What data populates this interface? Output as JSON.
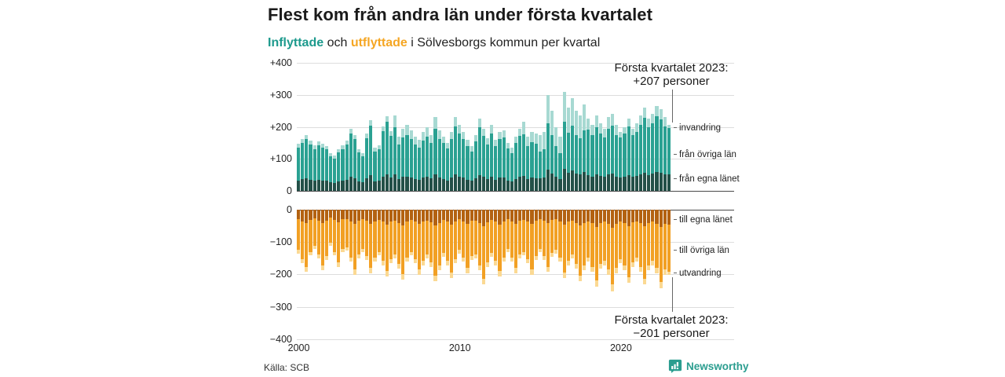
{
  "header": {
    "title": "Flest kom från andra län under första kvartalet",
    "subtitle": {
      "inflyttade": "Inflyttade",
      "och": " och ",
      "utflyttade": "utflyttade",
      "rest": " i Sölvesborgs kommun per kvartal"
    }
  },
  "colors": {
    "inflyttade": "#1d9a8d",
    "utflyttade": "#f5a623",
    "grid": "#dddddd",
    "axis": "#4a4a4a",
    "annotation_line": "#666666"
  },
  "chart_data": {
    "type": "bar",
    "stacked": true,
    "x_unit": "quarter",
    "x_range": "2000Q1–2023Q1",
    "x_ticks": [
      2000,
      2010,
      2020
    ],
    "top": {
      "label": "Inflyttade",
      "ylim": [
        0,
        400
      ],
      "yticks": [
        "+400",
        "+300",
        "+200",
        "+100",
        "0"
      ],
      "series": [
        {
          "key": "fran_egna_lanet",
          "name": "från egna länet",
          "color": "#235048"
        },
        {
          "key": "fran_ovriga_lan",
          "name": "från övriga län",
          "color": "#2aa192"
        },
        {
          "key": "invandring",
          "name": "invandring",
          "color": "#a7d9d2"
        }
      ],
      "bars": [
        [
          33,
          103,
          12
        ],
        [
          36,
          114,
          13
        ],
        [
          39,
          122,
          14
        ],
        [
          35,
          110,
          13
        ],
        [
          31,
          100,
          11
        ],
        [
          34,
          109,
          12
        ],
        [
          32,
          103,
          12
        ],
        [
          31,
          99,
          11
        ],
        [
          26,
          83,
          9
        ],
        [
          24,
          77,
          9
        ],
        [
          29,
          91,
          10
        ],
        [
          31,
          100,
          11
        ],
        [
          35,
          110,
          13
        ],
        [
          43,
          136,
          16
        ],
        [
          39,
          122,
          14
        ],
        [
          29,
          91,
          10
        ],
        [
          26,
          83,
          9
        ],
        [
          39,
          125,
          14
        ],
        [
          49,
          155,
          18
        ],
        [
          29,
          94,
          11
        ],
        [
          31,
          100,
          11
        ],
        [
          44,
          142,
          16
        ],
        [
          51,
          164,
          19
        ],
        [
          41,
          130,
          15
        ],
        [
          52,
          148,
          35
        ],
        [
          37,
          107,
          26
        ],
        [
          43,
          123,
          29
        ],
        [
          45,
          129,
          31
        ],
        [
          42,
          119,
          29
        ],
        [
          37,
          107,
          26
        ],
        [
          35,
          101,
          24
        ],
        [
          41,
          116,
          28
        ],
        [
          44,
          126,
          30
        ],
        [
          39,
          110,
          26
        ],
        [
          51,
          144,
          35
        ],
        [
          42,
          119,
          29
        ],
        [
          37,
          113,
          20
        ],
        [
          33,
          99,
          18
        ],
        [
          41,
          122,
          22
        ],
        [
          51,
          151,
          28
        ],
        [
          45,
          135,
          25
        ],
        [
          41,
          122,
          22
        ],
        [
          35,
          106,
          19
        ],
        [
          31,
          92,
          17
        ],
        [
          39,
          115,
          21
        ],
        [
          50,
          148,
          27
        ],
        [
          43,
          129,
          23
        ],
        [
          36,
          109,
          20
        ],
        [
          45,
          135,
          25
        ],
        [
          35,
          106,
          19
        ],
        [
          41,
          122,
          22
        ],
        [
          42,
          125,
          23
        ],
        [
          33,
          99,
          18
        ],
        [
          30,
          89,
          16
        ],
        [
          37,
          113,
          20
        ],
        [
          43,
          129,
          23
        ],
        [
          47,
          129,
          39
        ],
        [
          37,
          102,
          31
        ],
        [
          41,
          111,
          33
        ],
        [
          40,
          108,
          32
        ],
        [
          39,
          83,
          53
        ],
        [
          41,
          88,
          56
        ],
        [
          66,
          144,
          90
        ],
        [
          55,
          120,
          75
        ],
        [
          44,
          96,
          60
        ],
        [
          37,
          82,
          51
        ],
        [
          68,
          149,
          93
        ],
        [
          57,
          125,
          78
        ],
        [
          64,
          139,
          87
        ],
        [
          55,
          120,
          75
        ],
        [
          52,
          112,
          71
        ],
        [
          59,
          130,
          81
        ],
        [
          50,
          141,
          34
        ],
        [
          45,
          129,
          31
        ],
        [
          52,
          148,
          35
        ],
        [
          46,
          132,
          32
        ],
        [
          43,
          123,
          29
        ],
        [
          51,
          144,
          35
        ],
        [
          53,
          151,
          36
        ],
        [
          45,
          129,
          31
        ],
        [
          41,
          125,
          19
        ],
        [
          44,
          136,
          20
        ],
        [
          50,
          152,
          23
        ],
        [
          43,
          132,
          20
        ],
        [
          46,
          139,
          25
        ],
        [
          52,
          155,
          28
        ],
        [
          57,
          172,
          31
        ],
        [
          50,
          148,
          27
        ],
        [
          53,
          158,
          29
        ],
        [
          58,
          175,
          32
        ],
        [
          56,
          168,
          31
        ],
        [
          51,
          151,
          28
        ],
        [
          52,
          145,
          10
        ]
      ],
      "annotation": {
        "line1": "Första kvartalet 2023:",
        "line2": "+207 personer"
      }
    },
    "bottom": {
      "label": "Utflyttade",
      "ylim": [
        0,
        400
      ],
      "yticks": [
        "0",
        "−100",
        "−200",
        "−300",
        "−400"
      ],
      "series": [
        {
          "key": "till_egna_lanet",
          "name": "till egna länet",
          "color": "#b36211"
        },
        {
          "key": "till_ovriga_lan",
          "name": "till övriga län",
          "color": "#f2a024"
        },
        {
          "key": "utvandring",
          "name": "utvandring",
          "color": "#fbd993"
        }
      ],
      "bars": [
        [
          30,
          94,
          11
        ],
        [
          36,
          116,
          13
        ],
        [
          42,
          133,
          15
        ],
        [
          31,
          98,
          11
        ],
        [
          26,
          84,
          10
        ],
        [
          33,
          105,
          12
        ],
        [
          41,
          129,
          15
        ],
        [
          34,
          109,
          12
        ],
        [
          24,
          77,
          9
        ],
        [
          31,
          98,
          11
        ],
        [
          39,
          122,
          14
        ],
        [
          29,
          91,
          10
        ],
        [
          28,
          87,
          10
        ],
        [
          35,
          112,
          13
        ],
        [
          44,
          140,
          16
        ],
        [
          33,
          105,
          12
        ],
        [
          29,
          91,
          10
        ],
        [
          34,
          109,
          12
        ],
        [
          43,
          136,
          16
        ],
        [
          35,
          112,
          13
        ],
        [
          31,
          98,
          11
        ],
        [
          37,
          119,
          14
        ],
        [
          45,
          144,
          16
        ],
        [
          36,
          116,
          13
        ],
        [
          33,
          105,
          12
        ],
        [
          40,
          126,
          14
        ],
        [
          47,
          151,
          17
        ],
        [
          35,
          112,
          13
        ],
        [
          31,
          98,
          11
        ],
        [
          36,
          116,
          13
        ],
        [
          44,
          140,
          16
        ],
        [
          37,
          119,
          14
        ],
        [
          33,
          105,
          12
        ],
        [
          39,
          122,
          14
        ],
        [
          48,
          154,
          18
        ],
        [
          41,
          129,
          15
        ],
        [
          32,
          101,
          12
        ],
        [
          37,
          119,
          14
        ],
        [
          46,
          147,
          17
        ],
        [
          36,
          116,
          13
        ],
        [
          30,
          94,
          11
        ],
        [
          35,
          112,
          13
        ],
        [
          43,
          136,
          16
        ],
        [
          34,
          109,
          12
        ],
        [
          33,
          105,
          12
        ],
        [
          41,
          129,
          15
        ],
        [
          51,
          161,
          18
        ],
        [
          39,
          122,
          14
        ],
        [
          32,
          101,
          12
        ],
        [
          37,
          119,
          14
        ],
        [
          45,
          144,
          16
        ],
        [
          35,
          112,
          13
        ],
        [
          29,
          91,
          10
        ],
        [
          35,
          112,
          13
        ],
        [
          43,
          136,
          16
        ],
        [
          33,
          105,
          12
        ],
        [
          31,
          98,
          11
        ],
        [
          36,
          116,
          13
        ],
        [
          44,
          140,
          16
        ],
        [
          34,
          109,
          12
        ],
        [
          29,
          91,
          10
        ],
        [
          34,
          109,
          12
        ],
        [
          42,
          133,
          15
        ],
        [
          32,
          101,
          12
        ],
        [
          30,
          94,
          11
        ],
        [
          35,
          112,
          13
        ],
        [
          46,
          147,
          17
        ],
        [
          37,
          119,
          14
        ],
        [
          33,
          105,
          12
        ],
        [
          40,
          126,
          14
        ],
        [
          48,
          154,
          18
        ],
        [
          41,
          129,
          15
        ],
        [
          35,
          112,
          13
        ],
        [
          42,
          133,
          15
        ],
        [
          52,
          164,
          19
        ],
        [
          40,
          126,
          14
        ],
        [
          37,
          119,
          14
        ],
        [
          44,
          140,
          16
        ],
        [
          55,
          175,
          20
        ],
        [
          43,
          136,
          16
        ],
        [
          36,
          116,
          13
        ],
        [
          41,
          129,
          15
        ],
        [
          50,
          157,
          18
        ],
        [
          39,
          122,
          14
        ],
        [
          35,
          112,
          13
        ],
        [
          42,
          133,
          15
        ],
        [
          51,
          161,
          18
        ],
        [
          41,
          129,
          15
        ],
        [
          37,
          119,
          14
        ],
        [
          43,
          136,
          16
        ],
        [
          53,
          168,
          19
        ],
        [
          44,
          140,
          16
        ],
        [
          45,
          146,
          10
        ]
      ],
      "annotation": {
        "line1": "Första kvartalet 2023:",
        "line2": "−201 personer"
      }
    }
  },
  "footer": {
    "source": "Källa: SCB",
    "brand": "Newsworthy"
  }
}
